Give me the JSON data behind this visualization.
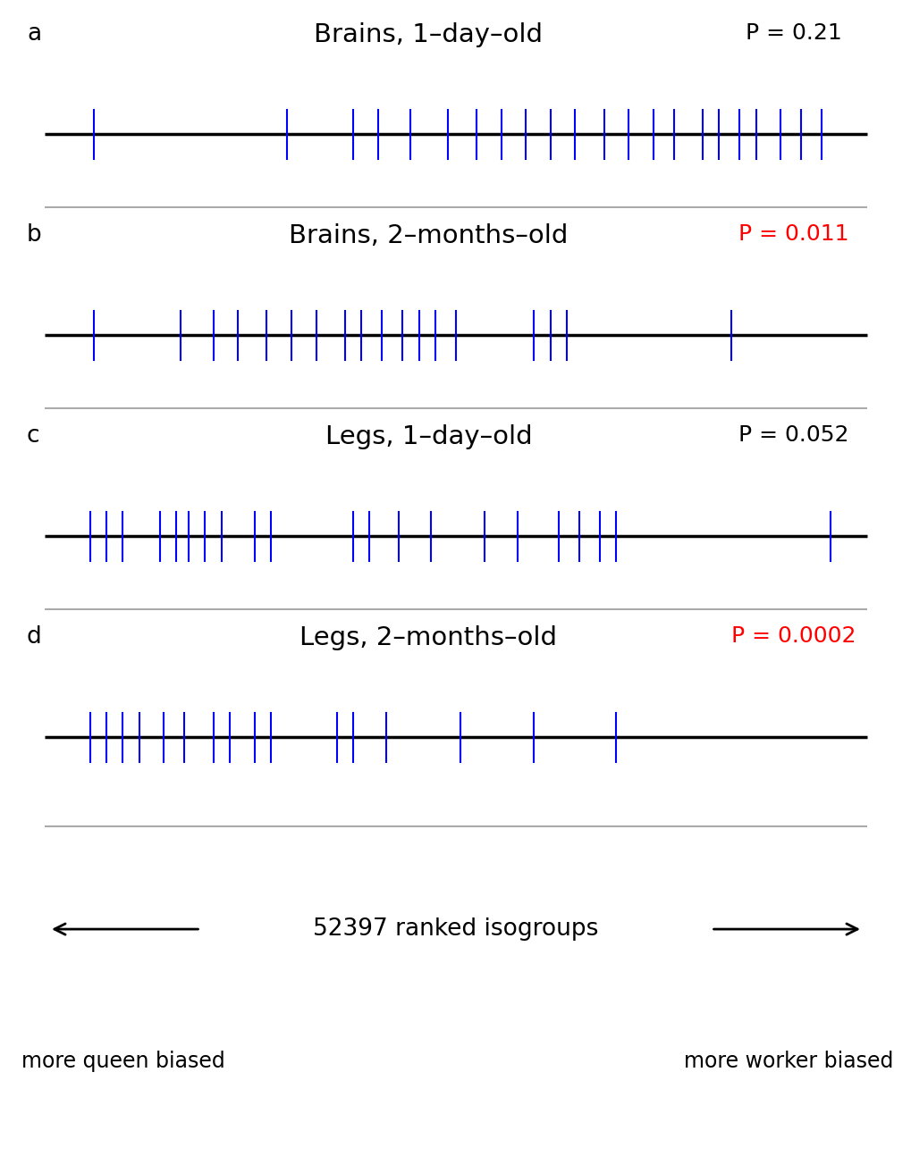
{
  "panels": [
    {
      "label": "a",
      "title": "Brains, 1–day–old",
      "pvalue": "P = 0.21",
      "pvalue_color": "black",
      "bars": [
        0.06,
        0.295,
        0.375,
        0.405,
        0.445,
        0.49,
        0.525,
        0.555,
        0.585,
        0.615,
        0.645,
        0.68,
        0.71,
        0.74,
        0.765,
        0.8,
        0.82,
        0.845,
        0.865,
        0.895,
        0.92,
        0.945
      ]
    },
    {
      "label": "b",
      "title": "Brains, 2–months–old",
      "pvalue": "P = 0.011",
      "pvalue_color": "red",
      "bars": [
        0.06,
        0.165,
        0.205,
        0.235,
        0.27,
        0.3,
        0.33,
        0.365,
        0.385,
        0.41,
        0.435,
        0.455,
        0.475,
        0.5,
        0.595,
        0.615,
        0.635,
        0.835
      ]
    },
    {
      "label": "c",
      "title": "Legs, 1–day–old",
      "pvalue": "P = 0.052",
      "pvalue_color": "black",
      "bars": [
        0.055,
        0.075,
        0.095,
        0.14,
        0.16,
        0.175,
        0.195,
        0.215,
        0.255,
        0.275,
        0.375,
        0.395,
        0.43,
        0.47,
        0.535,
        0.575,
        0.625,
        0.65,
        0.675,
        0.695,
        0.955
      ]
    },
    {
      "label": "d",
      "title": "Legs, 2–months–old",
      "pvalue": "P = 0.0002",
      "pvalue_color": "red",
      "bars": [
        0.055,
        0.075,
        0.095,
        0.115,
        0.145,
        0.17,
        0.205,
        0.225,
        0.255,
        0.275,
        0.355,
        0.375,
        0.415,
        0.505,
        0.595,
        0.695
      ]
    }
  ],
  "line_color": "black",
  "bar_color": "blue",
  "separator_color": "#aaaaaa",
  "line_lw": 2.5,
  "bar_lw": 1.5,
  "bottom_text": "52397 ranked isogroups",
  "left_label": "more queen biased",
  "right_label": "more worker biased"
}
